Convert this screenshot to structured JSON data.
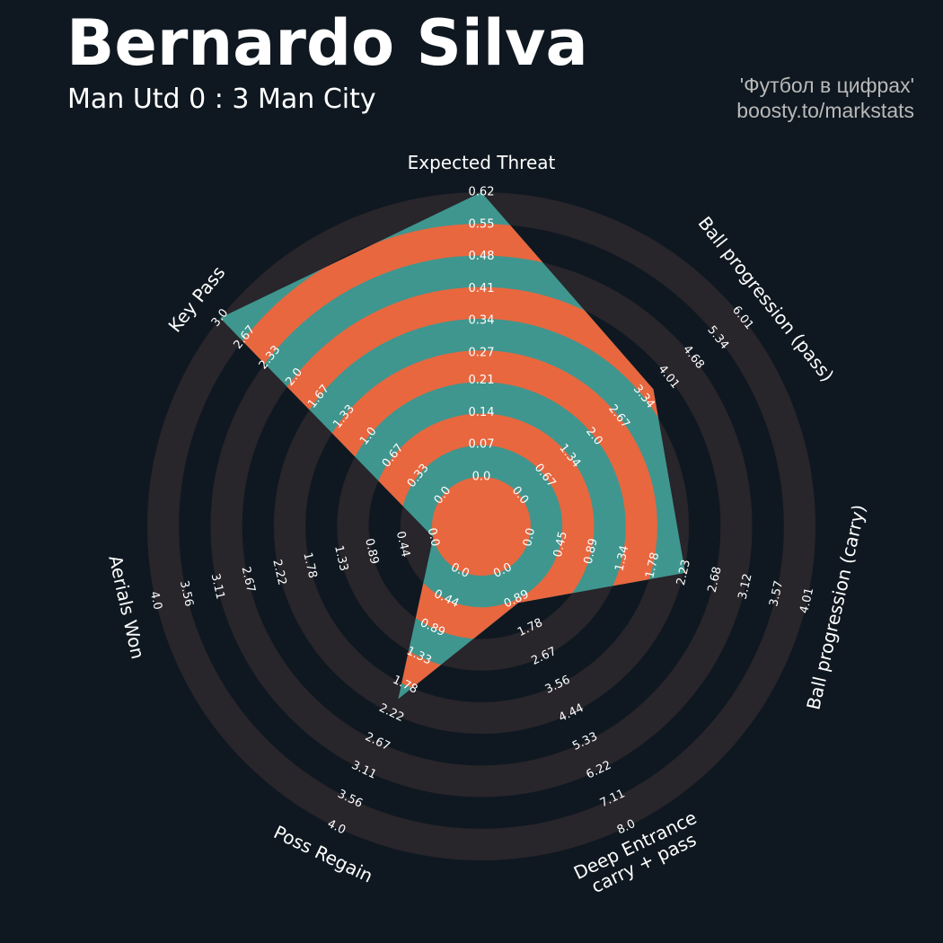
{
  "chart_data": {
    "type": "radar",
    "title": "Bernardo Silva",
    "subtitle": "Man Utd 0 : 3 Man City",
    "credits": [
      "'Футбол в цифрах'",
      "boosty.to/markstats"
    ],
    "color": "#3f968e",
    "highlight_color": "#e8673f",
    "ring_color": "#28252b",
    "params": [
      {
        "name": "Expected Threat",
        "lim": [
          0,
          0.62
        ],
        "value": 0.62,
        "ticks": [
          {
            "value": 0,
            "label": "0.0"
          },
          0.07,
          0.14,
          0.21,
          0.27,
          0.34,
          0.41,
          0.48,
          0.55,
          0.62
        ]
      },
      {
        "name": "Ball progression (pass)",
        "lim": [
          0,
          6.01
        ],
        "value": 3.6,
        "ticks": [
          {
            "value": 0,
            "label": "0.0"
          },
          0.67,
          1.34,
          {
            "value": 2,
            "label": "2.0"
          },
          2.67,
          3.34,
          4.01,
          4.68,
          5.34,
          6.01
        ]
      },
      {
        "name": "Ball progression (carry)",
        "lim": [
          0,
          4.01
        ],
        "value": 2.25,
        "ticks": [
          {
            "value": 0,
            "label": "0.0"
          },
          0.45,
          0.89,
          1.34,
          1.78,
          2.23,
          2.68,
          3.12,
          3.57,
          4.01
        ]
      },
      {
        "name": "Deep Entrance\ncarry + pass",
        "lim": [
          0,
          8
        ],
        "value": 1,
        "ticks": [
          {
            "value": 0,
            "label": "0.0"
          },
          0.89,
          1.78,
          2.67,
          3.56,
          4.44,
          5.33,
          6.22,
          7.11,
          {
            "value": 8,
            "label": "8.0"
          }
        ]
      },
      {
        "name": "Poss Regain",
        "lim": [
          0,
          4
        ],
        "value": 2,
        "ticks": [
          {
            "value": 0,
            "label": "0.0"
          },
          0.44,
          0.89,
          1.33,
          1.78,
          2.22,
          2.67,
          3.11,
          3.56,
          {
            "value": 4,
            "label": "4.0"
          }
        ]
      },
      {
        "name": "Aerials Won",
        "lim": [
          0,
          4
        ],
        "value": 0,
        "ticks": [
          {
            "value": 0,
            "label": "0.0"
          },
          0.44,
          0.89,
          1.33,
          1.78,
          2.22,
          2.67,
          3.11,
          3.56,
          {
            "value": 4,
            "label": "4.0"
          }
        ]
      },
      {
        "name": "Key Pass",
        "lim": [
          0,
          3
        ],
        "value": 3,
        "ticks": [
          {
            "value": 0,
            "label": "0.0"
          },
          0.33,
          0.67,
          {
            "value": 1,
            "label": "1.0"
          },
          1.33,
          1.67,
          {
            "value": 2,
            "label": "2.0"
          },
          2.33,
          2.67,
          {
            "value": 3,
            "label": "3.0"
          }
        ]
      }
    ]
  }
}
